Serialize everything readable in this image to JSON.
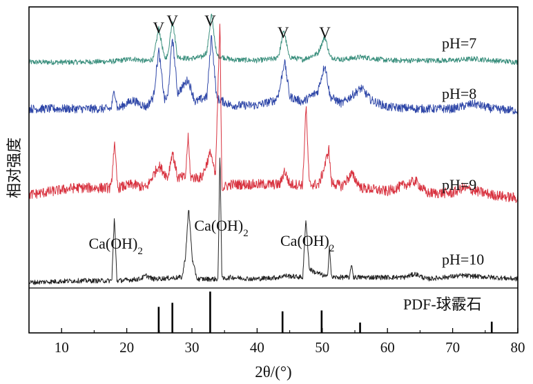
{
  "chart_data": {
    "type": "line",
    "xlabel": "2θ/(°)",
    "ylabel": "相对强度",
    "xlim": [
      5,
      80
    ],
    "x_ticks": [
      "10",
      "20",
      "30",
      "40",
      "50",
      "60",
      "70",
      "80"
    ],
    "grid": false,
    "series": [
      {
        "name": "pH=7",
        "color": "#3a8f7d",
        "x": [
          5,
          12,
          18.1,
          20.9,
          23,
          24.1,
          24.9,
          25.8,
          26.3,
          27.0,
          27.8,
          29.5,
          31.5,
          32.3,
          33.0,
          33.8,
          36,
          40,
          42.8,
          43.4,
          44.1,
          44.9,
          47,
          49.3,
          50.4,
          51.2,
          53,
          56.0,
          60,
          65,
          70,
          73.2,
          76,
          80
        ],
        "y": [
          0,
          0,
          0.5,
          2,
          0.5,
          2,
          20,
          2,
          4,
          25,
          3,
          2,
          3,
          6,
          28,
          4,
          1.5,
          1,
          2,
          5,
          19,
          3,
          1.5,
          5,
          15,
          3,
          1.5,
          3,
          1,
          1,
          1,
          2,
          1,
          0
        ]
      },
      {
        "name": "pH=8",
        "color": "#2f47a8",
        "x": [
          5,
          12,
          17.6,
          18.1,
          18.6,
          20.9,
          23,
          24.1,
          24.9,
          25.8,
          26.3,
          27.0,
          27.8,
          29.4,
          30.5,
          32.3,
          33.0,
          33.8,
          36,
          40,
          42.8,
          43.4,
          44.2,
          45,
          47,
          49.3,
          50.4,
          51.2,
          53,
          56.0,
          57.5,
          60,
          65,
          70,
          73.2,
          76,
          80
        ],
        "y": [
          5,
          5,
          5,
          16,
          5,
          10,
          6,
          12,
          39,
          10,
          12,
          47,
          14,
          22,
          9,
          12,
          48,
          11,
          7,
          7,
          10,
          15,
          33,
          12,
          9,
          15,
          31,
          12,
          8,
          17,
          10,
          6,
          5,
          5,
          8,
          5,
          4
        ]
      },
      {
        "name": "pH=9",
        "color": "#d8323f",
        "x": [
          5,
          12,
          17.6,
          18.1,
          18.6,
          20.9,
          23,
          24.9,
          26.3,
          27.0,
          27.8,
          29.0,
          29.4,
          29.8,
          31.5,
          32.9,
          33.6,
          34.3,
          34.6,
          36,
          40,
          43.5,
          44.2,
          45,
          47.0,
          47.5,
          48.0,
          49.5,
          50.4,
          51.0,
          51.4,
          53,
          54.5,
          56,
          60,
          64.3,
          66,
          70,
          71.5,
          76,
          80
        ],
        "y": [
          8,
          12,
          12,
          38,
          12,
          14,
          12,
          25,
          18,
          33,
          18,
          18,
          42,
          18,
          18,
          33,
          18,
          108,
          12,
          14,
          14,
          14,
          22,
          14,
          14,
          60,
          14,
          14,
          25,
          35,
          15,
          13,
          20,
          12,
          10,
          16,
          9,
          9,
          12,
          8,
          6
        ]
      },
      {
        "name": "pH=10",
        "color": "#222222",
        "x": [
          5,
          12,
          17.7,
          18.1,
          18.5,
          22,
          23,
          24,
          28.5,
          29.0,
          29.5,
          30.1,
          30.8,
          34.0,
          34.3,
          34.6,
          36,
          39.5,
          43.5,
          44,
          47.0,
          47.5,
          48.0,
          48.8,
          49.6,
          50.8,
          51.1,
          51.4,
          54.2,
          54.5,
          54.8,
          58,
          62.6,
          64.3,
          66,
          71.5,
          76,
          80
        ],
        "y": [
          0,
          1,
          1,
          38,
          1,
          2,
          4,
          2,
          3,
          15,
          43,
          12,
          2,
          2,
          77,
          2,
          3,
          2,
          3,
          4,
          3,
          37,
          8,
          6,
          5,
          3,
          22,
          3,
          3,
          11,
          3,
          3,
          3,
          5,
          2,
          4,
          3,
          2
        ]
      }
    ],
    "reference": {
      "name": "PDF-球霰石",
      "positions": [
        24.9,
        27.0,
        32.8,
        43.9,
        49.9,
        55.8,
        76.0
      ],
      "intensities": [
        0.58,
        0.67,
        0.92,
        0.48,
        0.5,
        0.23,
        0.25
      ],
      "minor_ticks": [
        10,
        19.8,
        30,
        38.7,
        40,
        49,
        59.5,
        62,
        67.5,
        68,
        69.5,
        73,
        74.2
      ]
    },
    "annotations": {
      "vaterite_marker": "V",
      "vaterite_positions": [
        24.9,
        27.0,
        32.8,
        44.0,
        50.4
      ],
      "portlandite_label_main": "Ca(OH)",
      "portlandite_label_sub": "2",
      "portlandite_positions": [
        18.1,
        34.3,
        47.5
      ]
    }
  }
}
